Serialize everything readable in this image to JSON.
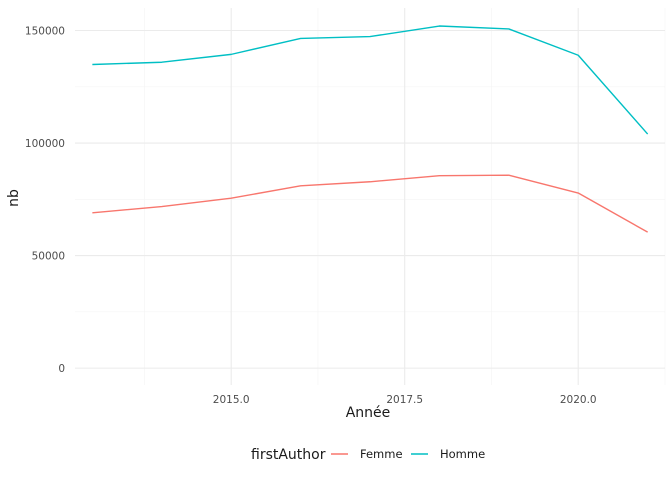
{
  "chart_data": {
    "type": "line",
    "xlabel": "Année",
    "ylabel": "nb",
    "xlim": [
      2012.75,
      2021.25
    ],
    "ylim": [
      -7500,
      160000
    ],
    "x_ticks": [
      2015.0,
      2017.5,
      2020.0
    ],
    "x_tick_labels": [
      "2015.0",
      "2017.5",
      "2020.0"
    ],
    "y_ticks": [
      0,
      50000,
      100000,
      150000
    ],
    "y_tick_labels": [
      "0",
      "50000",
      "100000",
      "150000"
    ],
    "grid": true,
    "legend": {
      "title": "firstAuthor",
      "position": "bottom"
    },
    "x": [
      2013,
      2014,
      2015,
      2016,
      2017,
      2018,
      2019,
      2020,
      2021
    ],
    "series": [
      {
        "name": "Femme",
        "color": "#F8766D",
        "values": [
          69000,
          71800,
          75500,
          81000,
          82800,
          85500,
          85700,
          77800,
          60400
        ]
      },
      {
        "name": "Homme",
        "color": "#00BFC4",
        "values": [
          134900,
          135900,
          139400,
          146500,
          147300,
          152000,
          150700,
          139000,
          104000
        ]
      }
    ]
  }
}
